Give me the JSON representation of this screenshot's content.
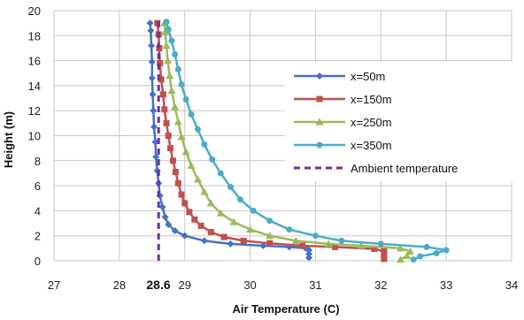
{
  "chart_data": {
    "type": "line",
    "title": "",
    "xlabel": "Air Temperature  (C)",
    "ylabel": "Height  (m)",
    "xlim": [
      27,
      34
    ],
    "ylim": [
      0,
      20
    ],
    "xticks": [
      "27",
      "28",
      "29",
      "30",
      "31",
      "32",
      "33",
      "34"
    ],
    "yticks": [
      "0",
      "2",
      "4",
      "6",
      "8",
      "10",
      "12",
      "14",
      "16",
      "18",
      "20"
    ],
    "grid": true,
    "legend_position": "right",
    "annotation": "28.6",
    "series": [
      {
        "name": "x=50m",
        "color": "#4472C4",
        "marker": "diamond",
        "points": [
          [
            30.9,
            0.25
          ],
          [
            30.9,
            0.55
          ],
          [
            30.9,
            0.85
          ],
          [
            30.85,
            1.0
          ],
          [
            30.6,
            1.1
          ],
          [
            30.2,
            1.2
          ],
          [
            29.7,
            1.35
          ],
          [
            29.3,
            1.6
          ],
          [
            29.0,
            2.0
          ],
          [
            28.85,
            2.4
          ],
          [
            28.75,
            2.9
          ],
          [
            28.7,
            3.5
          ],
          [
            28.66,
            4.3
          ],
          [
            28.62,
            5.2
          ],
          [
            28.6,
            6.2
          ],
          [
            28.58,
            7.2
          ],
          [
            28.56,
            8.3
          ],
          [
            28.55,
            9.5
          ],
          [
            28.53,
            10.7
          ],
          [
            28.52,
            12.0
          ],
          [
            28.51,
            13.3
          ],
          [
            28.5,
            14.6
          ],
          [
            28.5,
            15.9
          ],
          [
            28.49,
            17.2
          ],
          [
            28.48,
            18.4
          ],
          [
            28.47,
            19.0
          ]
        ]
      },
      {
        "name": "x=150m",
        "color": "#C0504D",
        "marker": "square",
        "points": [
          [
            32.05,
            0.15
          ],
          [
            32.05,
            0.45
          ],
          [
            32.05,
            0.75
          ],
          [
            31.9,
            0.95
          ],
          [
            31.3,
            1.1
          ],
          [
            30.8,
            1.2
          ],
          [
            30.3,
            1.4
          ],
          [
            29.9,
            1.6
          ],
          [
            29.6,
            1.9
          ],
          [
            29.4,
            2.3
          ],
          [
            29.25,
            2.8
          ],
          [
            29.15,
            3.3
          ],
          [
            29.07,
            3.9
          ],
          [
            29.0,
            4.6
          ],
          [
            28.95,
            5.3
          ],
          [
            28.9,
            6.2
          ],
          [
            28.86,
            7.1
          ],
          [
            28.82,
            8.0
          ],
          [
            28.78,
            9.0
          ],
          [
            28.75,
            10.0
          ],
          [
            28.72,
            11.0
          ],
          [
            28.69,
            12.1
          ],
          [
            28.67,
            13.3
          ],
          [
            28.64,
            14.5
          ],
          [
            28.62,
            15.8
          ],
          [
            28.61,
            17.0
          ],
          [
            28.6,
            18.1
          ],
          [
            28.58,
            19.0
          ]
        ]
      },
      {
        "name": "x=250m",
        "color": "#9BBB59",
        "marker": "triangle",
        "points": [
          [
            32.3,
            0.1
          ],
          [
            32.4,
            0.4
          ],
          [
            32.45,
            0.75
          ],
          [
            32.3,
            1.0
          ],
          [
            31.7,
            1.2
          ],
          [
            31.2,
            1.35
          ],
          [
            30.7,
            1.6
          ],
          [
            30.3,
            2.0
          ],
          [
            30.0,
            2.5
          ],
          [
            29.75,
            3.1
          ],
          [
            29.55,
            3.8
          ],
          [
            29.4,
            4.6
          ],
          [
            29.3,
            5.5
          ],
          [
            29.2,
            6.5
          ],
          [
            29.1,
            7.6
          ],
          [
            29.02,
            8.7
          ],
          [
            28.95,
            9.9
          ],
          [
            28.9,
            11.1
          ],
          [
            28.85,
            12.3
          ],
          [
            28.8,
            13.6
          ],
          [
            28.77,
            14.8
          ],
          [
            28.74,
            16.0
          ],
          [
            28.72,
            17.2
          ],
          [
            28.7,
            18.3
          ],
          [
            28.69,
            19.0
          ]
        ]
      },
      {
        "name": "x=350m",
        "color": "#4BACC6",
        "marker": "circle",
        "points": [
          [
            32.5,
            0.1
          ],
          [
            32.6,
            0.35
          ],
          [
            32.85,
            0.6
          ],
          [
            33.0,
            0.85
          ],
          [
            32.7,
            1.1
          ],
          [
            32.0,
            1.35
          ],
          [
            31.4,
            1.6
          ],
          [
            31.0,
            2.0
          ],
          [
            30.6,
            2.5
          ],
          [
            30.3,
            3.2
          ],
          [
            30.05,
            4.0
          ],
          [
            29.85,
            4.9
          ],
          [
            29.7,
            5.9
          ],
          [
            29.55,
            7.0
          ],
          [
            29.42,
            8.1
          ],
          [
            29.3,
            9.3
          ],
          [
            29.2,
            10.5
          ],
          [
            29.1,
            11.7
          ],
          [
            29.02,
            12.9
          ],
          [
            28.95,
            14.1
          ],
          [
            28.9,
            15.3
          ],
          [
            28.85,
            16.5
          ],
          [
            28.8,
            17.6
          ],
          [
            28.75,
            18.5
          ],
          [
            28.72,
            19.1
          ]
        ]
      },
      {
        "name": "Ambient temperature",
        "color": "#7030A0",
        "marker": "none",
        "dashed": true,
        "points": [
          [
            28.6,
            0
          ],
          [
            28.6,
            19.2
          ]
        ]
      }
    ]
  }
}
